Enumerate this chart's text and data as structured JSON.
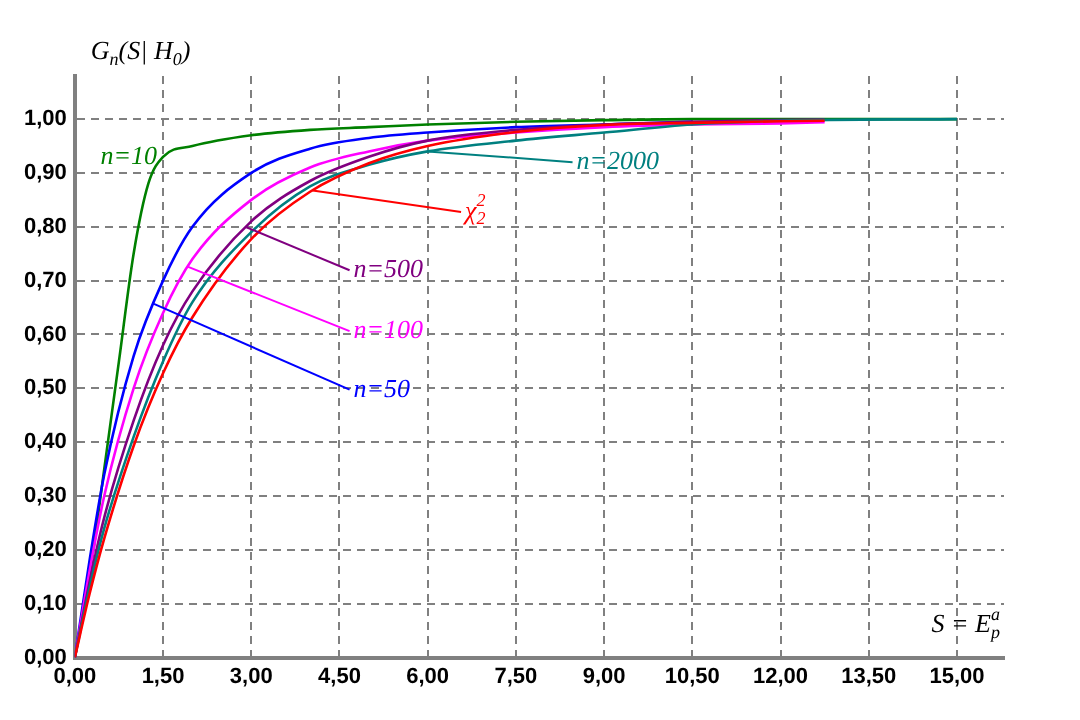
{
  "chart_data": {
    "type": "line",
    "ylabel": "G$_{n}$(S| H$_{0}$)",
    "xlabel": "S = E$_{p}$$^{a}$",
    "series": [
      {
        "name": "n=10",
        "color": "#008000",
        "x": [
          0,
          0.25,
          0.5,
          0.75,
          1,
          1.25,
          1.5,
          2,
          3,
          4,
          5,
          6,
          7.5,
          9,
          10.5,
          12,
          15
        ],
        "values": [
          0,
          0.15,
          0.35,
          0.55,
          0.75,
          0.88,
          0.93,
          0.95,
          0.97,
          0.98,
          0.985,
          0.99,
          0.995,
          0.998,
          1,
          1,
          1
        ]
      },
      {
        "name": "n=50",
        "color": "#0000ff",
        "x": [
          0,
          0.25,
          0.5,
          1,
          1.5,
          2,
          3,
          4,
          5,
          6,
          7.5,
          9,
          10.5
        ],
        "values": [
          0,
          0.18,
          0.34,
          0.56,
          0.7,
          0.8,
          0.9,
          0.945,
          0.965,
          0.975,
          0.985,
          0.99,
          0.995
        ]
      },
      {
        "name": "n=100",
        "color": "#ff00ff",
        "x": [
          0,
          0.25,
          0.5,
          1,
          1.5,
          2,
          3,
          4,
          5,
          6,
          7.5,
          9,
          10.5,
          12,
          12.75
        ],
        "values": [
          0,
          0.16,
          0.3,
          0.5,
          0.64,
          0.74,
          0.85,
          0.91,
          0.94,
          0.96,
          0.975,
          0.985,
          0.99,
          0.992,
          0.994
        ]
      },
      {
        "name": "n=500",
        "color": "#800080",
        "x": [
          0,
          0.25,
          0.5,
          1,
          1.5,
          2,
          3,
          4,
          5,
          6,
          7.5,
          9,
          10.5,
          12,
          12.75
        ],
        "values": [
          0,
          0.14,
          0.26,
          0.44,
          0.58,
          0.68,
          0.81,
          0.885,
          0.93,
          0.96,
          0.98,
          0.99,
          0.995,
          0.998,
          0.999
        ]
      },
      {
        "name": "n=2000",
        "color": "#008080",
        "x": [
          0,
          0.25,
          0.5,
          1,
          1.5,
          2,
          3,
          4,
          5,
          6,
          7.5,
          9,
          10.5,
          12,
          15
        ],
        "values": [
          0,
          0.13,
          0.24,
          0.41,
          0.55,
          0.66,
          0.79,
          0.875,
          0.915,
          0.94,
          0.96,
          0.975,
          0.99,
          0.997,
          1
        ]
      },
      {
        "name": "χ$_{2}$$^{2}$",
        "color": "#ff0000",
        "x": [
          0,
          0.25,
          0.5,
          1,
          1.5,
          2,
          3,
          4,
          5,
          6,
          7.5,
          9,
          10.5,
          12,
          12.75
        ],
        "values": [
          0,
          0.118,
          0.221,
          0.393,
          0.528,
          0.632,
          0.777,
          0.865,
          0.918,
          0.95,
          0.976,
          0.989,
          0.993,
          0.996,
          0.997
        ]
      }
    ],
    "xlim": [
      0,
      15.8
    ],
    "ylim": [
      0,
      1.08
    ],
    "xticks": [
      {
        "value": 0,
        "label": "0,00"
      },
      {
        "value": 1.5,
        "label": "1,50"
      },
      {
        "value": 3,
        "label": "3,00"
      },
      {
        "value": 4.5,
        "label": "4,50"
      },
      {
        "value": 6,
        "label": "6,00"
      },
      {
        "value": 7.5,
        "label": "7,50"
      },
      {
        "value": 9,
        "label": "9,00"
      },
      {
        "value": 10.5,
        "label": "10,50"
      },
      {
        "value": 12,
        "label": "12,00"
      },
      {
        "value": 13.5,
        "label": "13,50"
      },
      {
        "value": 15,
        "label": "15,00"
      }
    ],
    "yticks": [
      {
        "value": 0,
        "label": "0,00"
      },
      {
        "value": 0.1,
        "label": "0,10"
      },
      {
        "value": 0.2,
        "label": "0,20"
      },
      {
        "value": 0.3,
        "label": "0,30"
      },
      {
        "value": 0.4,
        "label": "0,40"
      },
      {
        "value": 0.5,
        "label": "0,50"
      },
      {
        "value": 0.6,
        "label": "0,60"
      },
      {
        "value": 0.7,
        "label": "0,70"
      },
      {
        "value": 0.8,
        "label": "0,80"
      },
      {
        "value": 0.9,
        "label": "0,90"
      },
      {
        "value": 1,
        "label": "1,00"
      }
    ],
    "grid": true,
    "legend": false,
    "marker": "none",
    "line_style": "solid"
  }
}
